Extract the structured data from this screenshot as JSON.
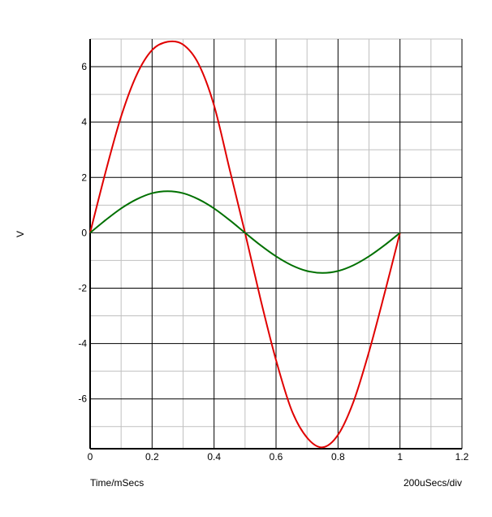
{
  "chart_data": {
    "type": "line",
    "title": "",
    "ylabel": "V",
    "xlabel": "Time/mSecs",
    "scale_label": "200uSecs/div",
    "xlim": [
      0,
      1.2
    ],
    "ylim": [
      -7.8,
      7.0
    ],
    "grid": true,
    "x_ticks": [
      0,
      0.2,
      0.4,
      0.6,
      0.8,
      1,
      1.2
    ],
    "x_tick_labels": [
      "0",
      "0.2",
      "0.4",
      "0.6",
      "0.8",
      "1",
      "1.2"
    ],
    "y_ticks": [
      -6,
      -4,
      -2,
      0,
      2,
      4,
      6
    ],
    "y_tick_labels": [
      "-6",
      "-4",
      "-2",
      "0",
      "2",
      "4",
      "6"
    ],
    "series": [
      {
        "color": "#e00000",
        "x": [
          0,
          0.05,
          0.1,
          0.15,
          0.2,
          0.25,
          0.3,
          0.35,
          0.4,
          0.45,
          0.5,
          0.55,
          0.6,
          0.65,
          0.7,
          0.75,
          0.8,
          0.85,
          0.9,
          0.95,
          1.0
        ],
        "values": [
          0,
          2.2,
          4.2,
          5.7,
          6.6,
          6.9,
          6.8,
          6.1,
          4.6,
          2.3,
          0,
          -2.4,
          -4.6,
          -6.4,
          -7.4,
          -7.75,
          -7.3,
          -6.1,
          -4.3,
          -2.2,
          0
        ]
      },
      {
        "color": "#007000",
        "x": [
          0,
          0.05,
          0.1,
          0.15,
          0.2,
          0.25,
          0.3,
          0.35,
          0.4,
          0.45,
          0.5,
          0.55,
          0.6,
          0.65,
          0.7,
          0.75,
          0.8,
          0.85,
          0.9,
          0.95,
          1.0
        ],
        "values": [
          0,
          0.46,
          0.88,
          1.21,
          1.43,
          1.5,
          1.43,
          1.21,
          0.88,
          0.46,
          0,
          -0.45,
          -0.85,
          -1.17,
          -1.38,
          -1.45,
          -1.38,
          -1.17,
          -0.85,
          -0.45,
          0
        ]
      }
    ]
  }
}
